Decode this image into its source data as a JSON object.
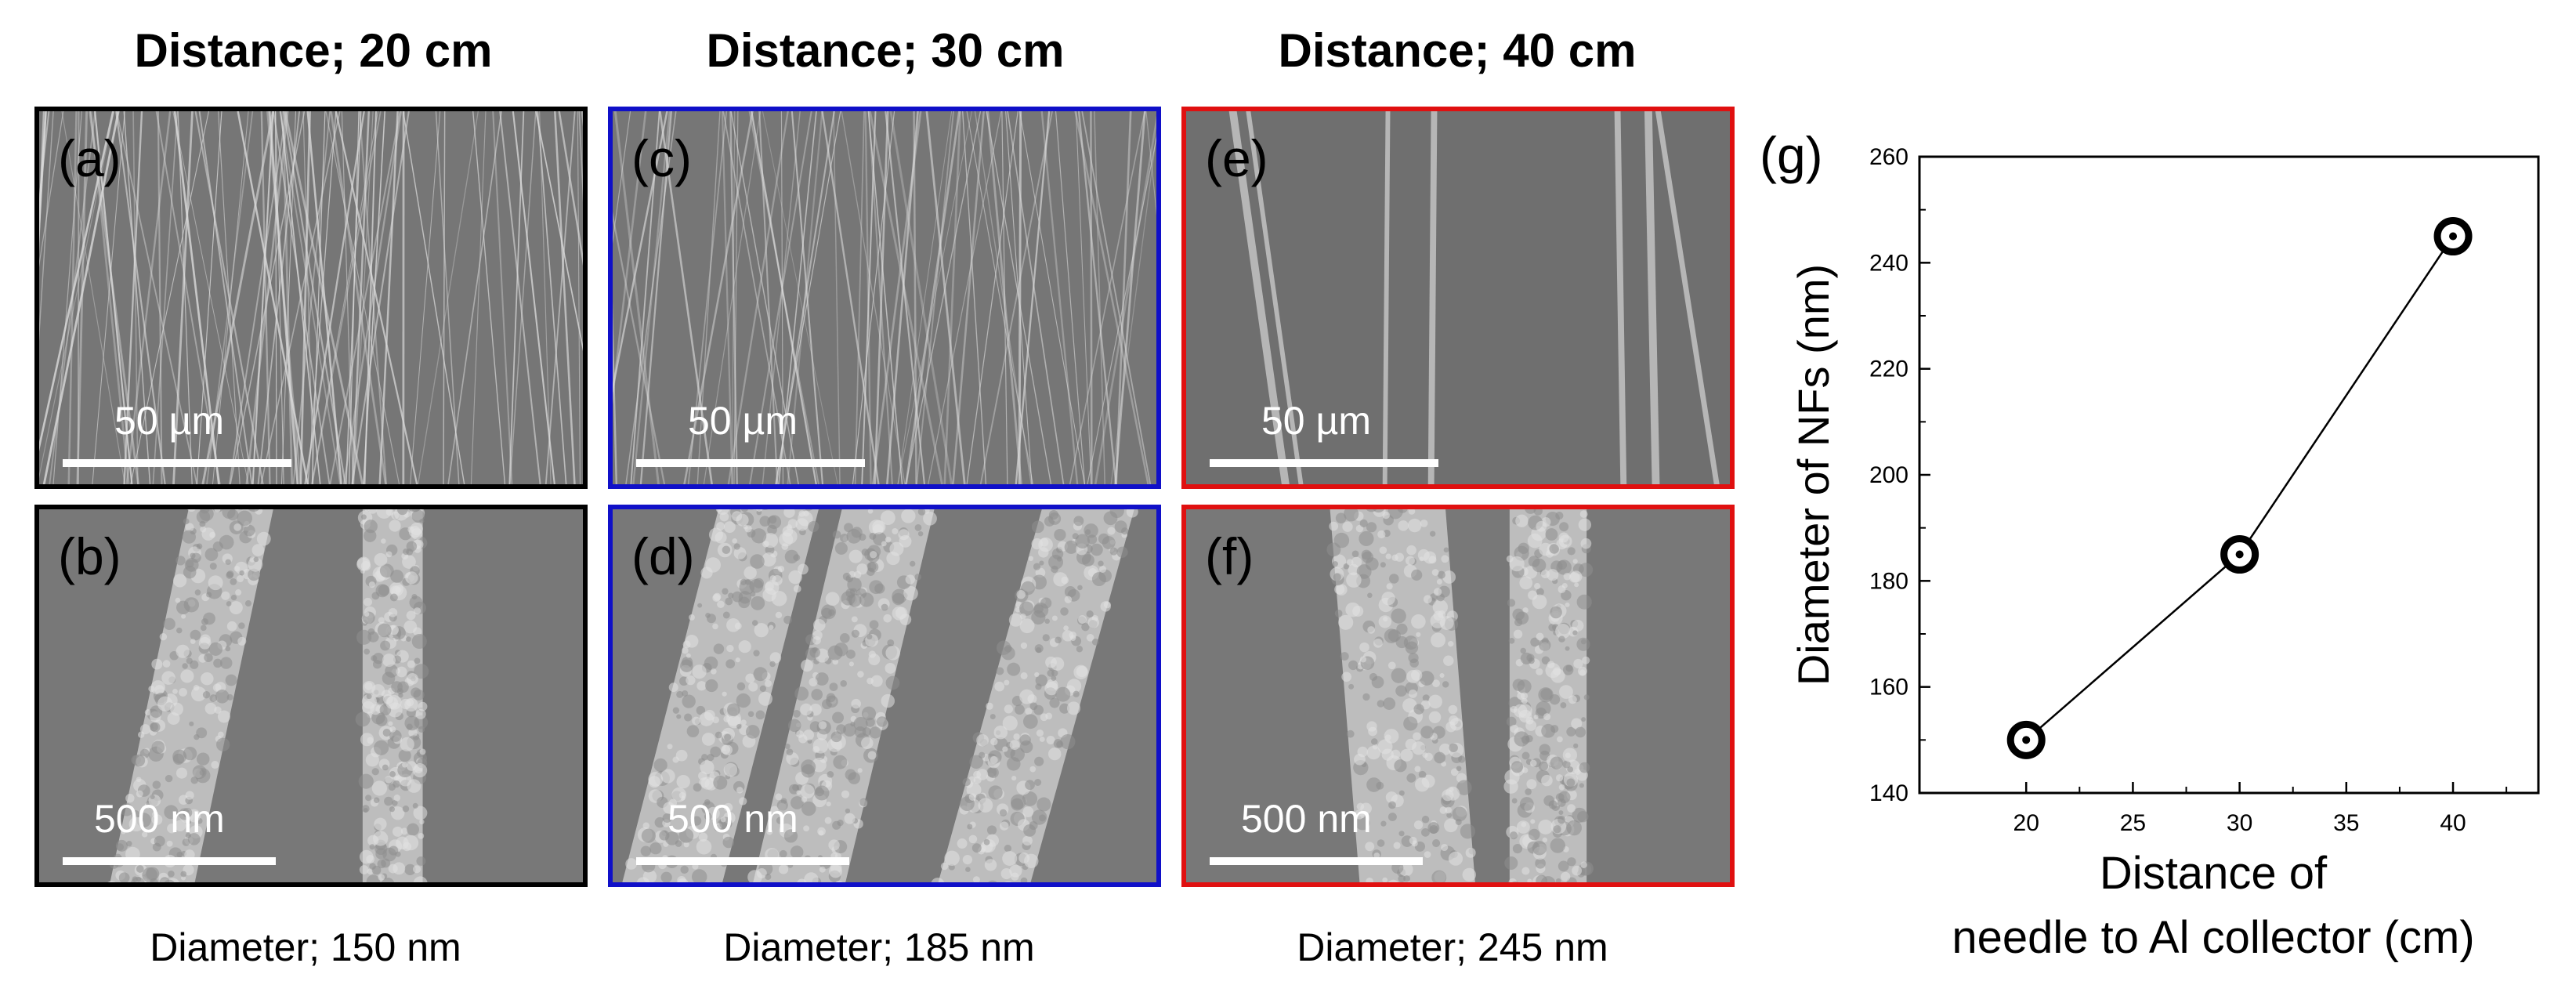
{
  "columns": [
    {
      "title": "Distance; 20 cm",
      "caption": "Diameter; 150 nm",
      "color": "#000000",
      "top_label": "(a)",
      "bottom_label": "(b)",
      "top_scale": "50 µm",
      "bottom_scale": "500 nm"
    },
    {
      "title": "Distance; 30 cm",
      "caption": "Diameter; 185 nm",
      "color": "#1010c8",
      "top_label": "(c)",
      "bottom_label": "(d)",
      "top_scale": "50 µm",
      "bottom_scale": "500 nm"
    },
    {
      "title": "Distance; 40 cm",
      "caption": "Diameter; 245 nm",
      "color": "#e01010",
      "top_label": "(e)",
      "bottom_label": "(f)",
      "top_scale": "50 µm",
      "bottom_scale": "500 nm"
    }
  ],
  "chart_label": "(g)",
  "chart_data": {
    "type": "line",
    "x": [
      20,
      30,
      40
    ],
    "series": [
      {
        "values": [
          150,
          185,
          245
        ]
      }
    ],
    "xlabel": "Distance of needle to Al collector (cm)",
    "xlabel_lines": [
      "Distance of",
      "needle to Al collector (cm)"
    ],
    "ylabel": "Diameter of NFs (nm)",
    "xlim": [
      15,
      44
    ],
    "ylim": [
      140,
      260
    ],
    "xticks": [
      20,
      25,
      30,
      35,
      40
    ],
    "yticks": [
      140,
      160,
      180,
      200,
      220,
      240,
      260
    ],
    "grid": false,
    "marker": "circle-dot"
  }
}
